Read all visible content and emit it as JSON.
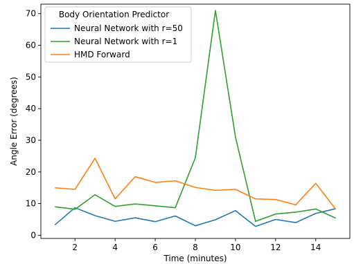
{
  "chart_data": {
    "type": "line",
    "title": "",
    "xlabel": "Time (minutes)",
    "ylabel": "Angle Error (degrees)",
    "xlim": [
      0.3,
      15.7
    ],
    "ylim": [
      -1,
      73
    ],
    "xticks": [
      2,
      4,
      6,
      8,
      10,
      12,
      14
    ],
    "yticks": [
      0,
      10,
      20,
      30,
      40,
      50,
      60,
      70
    ],
    "grid": false,
    "legend": {
      "title": "Body Orientation Predictor",
      "placement": "top-left"
    },
    "x": [
      1,
      2,
      3,
      4,
      5,
      6,
      7,
      8,
      9,
      10,
      11,
      12,
      13,
      14,
      15
    ],
    "series": [
      {
        "name": "Neural Network with r=50",
        "color": "#1f77b4",
        "values": [
          3.3,
          8.7,
          6.2,
          4.4,
          5.5,
          4.3,
          6.1,
          3.0,
          4.9,
          7.8,
          2.8,
          5.0,
          4.0,
          6.9,
          8.4
        ]
      },
      {
        "name": "Neural Network with r=1",
        "color": "#2ca02c",
        "values": [
          9.0,
          8.2,
          12.8,
          9.1,
          9.9,
          9.3,
          8.7,
          24.5,
          71.0,
          31.0,
          4.4,
          6.7,
          7.3,
          8.3,
          5.4
        ]
      },
      {
        "name": "HMD Forward",
        "color": "#ff7f0e",
        "values": [
          15.0,
          14.5,
          24.3,
          11.5,
          18.5,
          16.7,
          17.2,
          15.1,
          14.2,
          14.5,
          11.5,
          11.3,
          9.6,
          16.4,
          8.2
        ]
      }
    ]
  }
}
